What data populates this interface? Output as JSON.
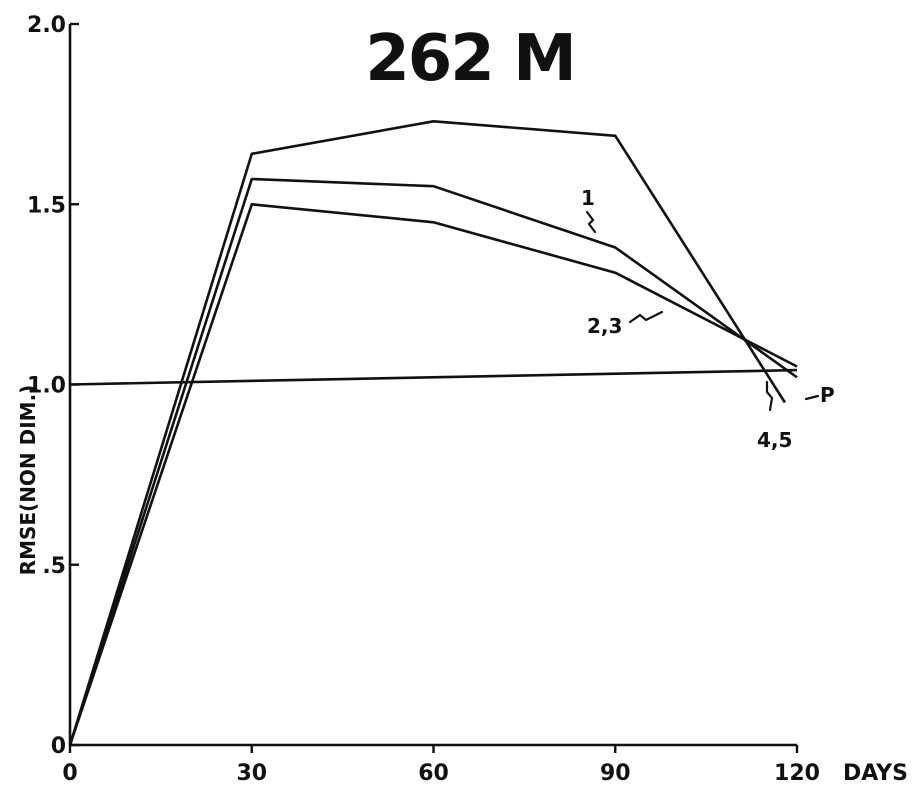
{
  "chart_data": {
    "type": "line",
    "title": "262 M",
    "xlabel": "DAYS",
    "ylabel": "RMSE(NON DIM.)",
    "xlim": [
      0,
      120
    ],
    "ylim": [
      0,
      2.0
    ],
    "x_ticks": [
      0,
      30,
      60,
      90,
      120
    ],
    "x_tick_labels": [
      "0",
      "30",
      "60",
      "90",
      "120"
    ],
    "y_ticks": [
      0,
      0.5,
      1.0,
      1.5,
      2.0
    ],
    "y_tick_labels": [
      "0",
      ".5",
      "1.0",
      "1.5",
      "2.0"
    ],
    "grid": false,
    "series": [
      {
        "name": "1",
        "x": [
          0,
          30,
          60,
          90,
          120
        ],
        "y": [
          0,
          1.57,
          1.55,
          1.38,
          1.02
        ]
      },
      {
        "name": "2,3",
        "x": [
          0,
          30,
          60,
          90,
          120
        ],
        "y": [
          0,
          1.5,
          1.45,
          1.31,
          1.05
        ]
      },
      {
        "name": "4,5",
        "x": [
          0,
          30,
          60,
          90,
          118
        ],
        "y": [
          0,
          1.64,
          1.73,
          1.69,
          0.95
        ]
      },
      {
        "name": "P",
        "x": [
          0,
          120
        ],
        "y": [
          1.0,
          1.04
        ]
      }
    ],
    "annotations": [
      "1",
      "2,3",
      "4,5",
      "P"
    ]
  }
}
